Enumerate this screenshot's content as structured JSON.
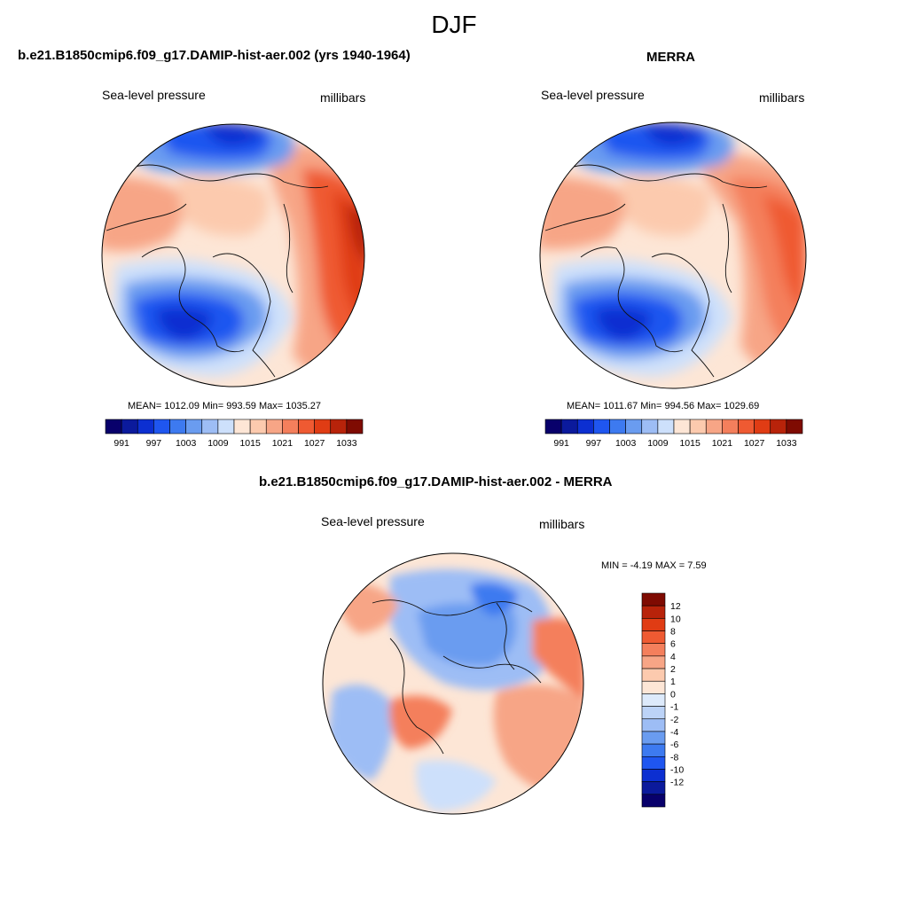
{
  "figure": {
    "season": "DJF"
  },
  "panels": [
    {
      "title": "b.e21.B1850cmip6.f09_g17.DAMIP-hist-aer.002 (yrs 1940-1964)",
      "left_label": "Sea-level pressure",
      "right_label": "millibars",
      "stats": "MEAN= 1012.09  Min= 993.59  Max= 1035.27",
      "colorbar": {
        "colors": [
          "#08006b",
          "#0b1a9c",
          "#0c2fd1",
          "#1f56f0",
          "#3d7af0",
          "#6a9cf0",
          "#9dbdf5",
          "#cde0fb",
          "#fde6d6",
          "#fccaae",
          "#f7a586",
          "#f47f5c",
          "#ef5a32",
          "#e03c14",
          "#b8230a",
          "#7f0b02"
        ],
        "tick_labels": [
          "991",
          "997",
          "1003",
          "1009",
          "1015",
          "1021",
          "1027",
          "1033"
        ]
      }
    },
    {
      "title": "MERRA",
      "left_label": "Sea-level pressure",
      "right_label": "millibars",
      "stats": "MEAN= 1011.67  Min= 994.56  Max= 1029.69",
      "colorbar": {
        "colors": [
          "#08006b",
          "#0b1a9c",
          "#0c2fd1",
          "#1f56f0",
          "#3d7af0",
          "#6a9cf0",
          "#9dbdf5",
          "#cde0fb",
          "#fde6d6",
          "#fccaae",
          "#f7a586",
          "#f47f5c",
          "#ef5a32",
          "#e03c14",
          "#b8230a",
          "#7f0b02"
        ],
        "tick_labels": [
          "991",
          "997",
          "1003",
          "1009",
          "1015",
          "1021",
          "1027",
          "1033"
        ]
      }
    },
    {
      "title": "b.e21.B1850cmip6.f09_g17.DAMIP-hist-aer.002 - MERRA",
      "left_label": "Sea-level pressure",
      "right_label": "millibars",
      "stats": "MIN =  -4.19 MAX =   7.59",
      "colorbar": {
        "colors": [
          "#7f0b02",
          "#b8230a",
          "#e03c14",
          "#ef5a32",
          "#f47f5c",
          "#f7a586",
          "#fccaae",
          "#fde6d6",
          "#ddeafb",
          "#bcd3f7",
          "#9dbdf5",
          "#6a9cf0",
          "#3d7af0",
          "#1f56f0",
          "#0c2fd1",
          "#0b1a9c",
          "#08006b"
        ],
        "tick_labels": [
          "12",
          "10",
          "8",
          "6",
          "4",
          "2",
          "1",
          "0",
          "-1",
          "-2",
          "-4",
          "-6",
          "-8",
          "-10",
          "-12"
        ]
      }
    }
  ]
}
